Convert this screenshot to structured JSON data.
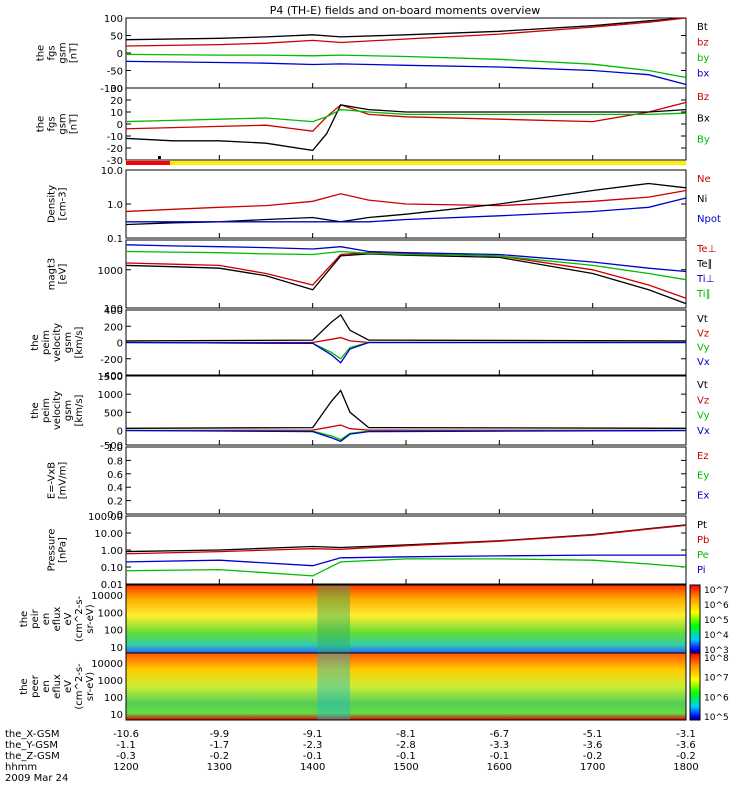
{
  "chart_data": {
    "type": "line",
    "title": "P4 (TH-E) fields and on-board moments overview",
    "date": "2009 Mar 24",
    "time_axis": {
      "label": "hhmm",
      "ticks": [
        "1200",
        "1300",
        "1400",
        "1500",
        "1600",
        "1700",
        "1800"
      ],
      "range": [
        1200,
        1800
      ]
    },
    "ephemeris": [
      {
        "label": "the_X-GSM",
        "values": [
          "-10.6",
          "-9.9",
          "-9.1",
          "-8.1",
          "-6.7",
          "-5.1",
          "-3.1"
        ]
      },
      {
        "label": "the_Y-GSM",
        "values": [
          "-1.1",
          "-1.7",
          "-2.3",
          "-2.8",
          "-3.3",
          "-3.6",
          "-3.6"
        ]
      },
      {
        "label": "the_Z-GSM",
        "values": [
          "-0.3",
          "-0.2",
          "-0.1",
          "-0.1",
          "-0.1",
          "-0.2",
          "-0.2"
        ]
      }
    ],
    "panels": [
      {
        "id": "fgs",
        "ylabel": [
          "the",
          "fgs",
          "gsm",
          "[nT]"
        ],
        "scale": "linear",
        "ylim": [
          -100,
          100
        ],
        "ticks": [
          "100",
          "50",
          "0",
          "-50",
          "-100"
        ],
        "series": [
          {
            "name": "Bt",
            "color": "#000000",
            "x": [
              1200,
              1300,
              1350,
              1400,
              1430,
              1500,
              1600,
              1700,
              1760,
              1800
            ],
            "y": [
              38,
              42,
              46,
              52,
              46,
              52,
              62,
              78,
              92,
              100
            ]
          },
          {
            "name": "bz",
            "color": "#cc0000",
            "x": [
              1200,
              1300,
              1350,
              1400,
              1430,
              1500,
              1600,
              1700,
              1760,
              1800
            ],
            "y": [
              20,
              24,
              28,
              36,
              30,
              40,
              54,
              74,
              88,
              100
            ]
          },
          {
            "name": "by",
            "color": "#00bb00",
            "x": [
              1200,
              1300,
              1350,
              1400,
              1430,
              1500,
              1600,
              1700,
              1760,
              1800
            ],
            "y": [
              -4,
              -6,
              -6,
              -8,
              -6,
              -10,
              -18,
              -32,
              -50,
              -70
            ]
          },
          {
            "name": "bx",
            "color": "#0000cc",
            "x": [
              1200,
              1300,
              1350,
              1400,
              1430,
              1500,
              1600,
              1700,
              1760,
              1800
            ],
            "y": [
              -24,
              -27,
              -29,
              -33,
              -31,
              -35,
              -40,
              -50,
              -62,
              -90
            ]
          }
        ]
      },
      {
        "id": "fgs-zoom",
        "ylabel": [
          "the",
          "fgs",
          "gsm",
          "[nT]"
        ],
        "scale": "linear",
        "ylim": [
          -30,
          30
        ],
        "ticks": [
          "30",
          "20",
          "10",
          "0",
          "-10",
          "-20",
          "-30"
        ],
        "series": [
          {
            "name": "Bz",
            "color": "#cc0000",
            "x": [
              1200,
              1250,
              1300,
              1350,
              1400,
              1415,
              1430,
              1460,
              1500,
              1600,
              1700,
              1760,
              1800
            ],
            "y": [
              -4,
              -3,
              -2,
              -1,
              -6,
              6,
              16,
              8,
              6,
              4,
              2,
              10,
              18
            ]
          },
          {
            "name": "Bx",
            "color": "#000000",
            "x": [
              1200,
              1250,
              1300,
              1350,
              1400,
              1415,
              1430,
              1460,
              1500,
              1600,
              1700,
              1760,
              1800
            ],
            "y": [
              -12,
              -14,
              -14,
              -16,
              -22,
              -8,
              16,
              12,
              10,
              10,
              10,
              10,
              12
            ]
          },
          {
            "name": "By",
            "color": "#00bb00",
            "x": [
              1200,
              1250,
              1300,
              1350,
              1400,
              1415,
              1430,
              1460,
              1500,
              1600,
              1700,
              1760,
              1800
            ],
            "y": [
              2,
              3,
              4,
              5,
              2,
              6,
              12,
              10,
              8,
              8,
              8,
              8,
              9
            ]
          }
        ]
      },
      {
        "id": "density",
        "ylabel": [
          "Density",
          "[cm-3]"
        ],
        "scale": "log",
        "ylim": [
          0.1,
          10
        ],
        "ticks": [
          "10.0",
          "1.0",
          "0.1"
        ],
        "series": [
          {
            "name": "Ne",
            "color": "#cc0000",
            "x": [
              1200,
              1250,
              1300,
              1350,
              1400,
              1430,
              1460,
              1500,
              1600,
              1700,
              1760,
              1800
            ],
            "y": [
              0.6,
              0.7,
              0.8,
              0.9,
              1.2,
              2.0,
              1.3,
              1.0,
              0.9,
              1.2,
              1.6,
              2.5
            ]
          },
          {
            "name": "Ni",
            "color": "#000000",
            "x": [
              1200,
              1250,
              1300,
              1350,
              1400,
              1430,
              1460,
              1500,
              1600,
              1700,
              1760,
              1800
            ],
            "y": [
              0.25,
              0.28,
              0.3,
              0.35,
              0.4,
              0.3,
              0.4,
              0.5,
              1.0,
              2.5,
              4.0,
              3.0
            ]
          },
          {
            "name": "Npot",
            "color": "#0000cc",
            "x": [
              1200,
              1250,
              1300,
              1350,
              1400,
              1430,
              1460,
              1500,
              1600,
              1700,
              1760,
              1800
            ],
            "y": [
              0.3,
              0.3,
              0.3,
              0.3,
              0.3,
              0.3,
              0.3,
              0.35,
              0.45,
              0.6,
              0.8,
              1.5
            ]
          }
        ]
      },
      {
        "id": "temperature",
        "ylabel": [
          "magt3",
          "[eV]"
        ],
        "scale": "log",
        "ylim": [
          100,
          6000
        ],
        "ticks": [
          "1000",
          "100"
        ],
        "series": [
          {
            "name": "Te⊥",
            "color": "#cc0000",
            "x": [
              1200,
              1250,
              1300,
              1350,
              1400,
              1430,
              1460,
              1500,
              1600,
              1700,
              1760,
              1800
            ],
            "y": [
              1500,
              1400,
              1300,
              800,
              400,
              2500,
              2800,
              2600,
              2300,
              1000,
              400,
              180
            ]
          },
          {
            "name": "Te∥",
            "color": "#000000",
            "x": [
              1200,
              1250,
              1300,
              1350,
              1400,
              1430,
              1460,
              1500,
              1600,
              1700,
              1760,
              1800
            ],
            "y": [
              1300,
              1200,
              1100,
              700,
              300,
              2300,
              2600,
              2400,
              2100,
              800,
              300,
              130
            ]
          },
          {
            "name": "Ti⊥",
            "color": "#0000cc",
            "x": [
              1200,
              1250,
              1300,
              1350,
              1400,
              1430,
              1460,
              1500,
              1600,
              1700,
              1760,
              1800
            ],
            "y": [
              4500,
              4200,
              4000,
              3800,
              3500,
              4000,
              3000,
              2800,
              2500,
              1600,
              1100,
              900
            ]
          },
          {
            "name": "Ti∥",
            "color": "#00bb00",
            "x": [
              1200,
              1250,
              1300,
              1350,
              1400,
              1430,
              1460,
              1500,
              1600,
              1700,
              1760,
              1800
            ],
            "y": [
              3000,
              2900,
              2800,
              2600,
              2500,
              3000,
              2700,
              2500,
              2300,
              1300,
              800,
              550
            ]
          }
        ]
      },
      {
        "id": "velocity-perp",
        "ylabel": [
          "the",
          "peim",
          "velocity",
          "gsm",
          "[km/s]"
        ],
        "scale": "linear",
        "ylim": [
          -400,
          400
        ],
        "ticks": [
          "400",
          "200",
          "0",
          "-200",
          "-400"
        ],
        "series": [
          {
            "name": "Vt",
            "color": "#000000",
            "x": [
              1200,
              1400,
              1420,
              1430,
              1440,
              1460,
              1800
            ],
            "y": [
              20,
              30,
              250,
              340,
              150,
              30,
              20
            ]
          },
          {
            "name": "Vz",
            "color": "#cc0000",
            "x": [
              1200,
              1400,
              1420,
              1430,
              1440,
              1460,
              1800
            ],
            "y": [
              0,
              0,
              40,
              60,
              20,
              0,
              0
            ]
          },
          {
            "name": "Vy",
            "color": "#00bb00",
            "x": [
              1200,
              1400,
              1420,
              1430,
              1440,
              1460,
              1800
            ],
            "y": [
              0,
              -10,
              -120,
              -200,
              -60,
              0,
              0
            ]
          },
          {
            "name": "Vx",
            "color": "#0000cc",
            "x": [
              1200,
              1400,
              1420,
              1430,
              1440,
              1460,
              1800
            ],
            "y": [
              0,
              -10,
              -150,
              -250,
              -80,
              0,
              0
            ]
          }
        ]
      },
      {
        "id": "velocity-perm",
        "ylabel": [
          "the",
          "peim",
          "velocity",
          "gsm",
          "[km/s]"
        ],
        "scale": "linear",
        "ylim": [
          -400,
          1500
        ],
        "ticks": [
          "1500",
          "1000",
          "500",
          "0",
          "-500"
        ],
        "series": [
          {
            "name": "Vt",
            "color": "#000000",
            "x": [
              1200,
              1400,
              1420,
              1430,
              1440,
              1460,
              1800
            ],
            "y": [
              60,
              80,
              800,
              1100,
              500,
              80,
              60
            ]
          },
          {
            "name": "Vz",
            "color": "#cc0000",
            "x": [
              1200,
              1400,
              1420,
              1430,
              1440,
              1460,
              1800
            ],
            "y": [
              0,
              10,
              100,
              150,
              50,
              10,
              0
            ]
          },
          {
            "name": "Vy",
            "color": "#00bb00",
            "x": [
              1200,
              1400,
              1420,
              1430,
              1440,
              1460,
              1800
            ],
            "y": [
              0,
              -20,
              -150,
              -250,
              -80,
              -20,
              0
            ]
          },
          {
            "name": "Vx",
            "color": "#0000cc",
            "x": [
              1200,
              1400,
              1420,
              1430,
              1440,
              1460,
              1800
            ],
            "y": [
              0,
              -30,
              -200,
              -300,
              -100,
              -30,
              0
            ]
          }
        ]
      },
      {
        "id": "efield",
        "ylabel": [
          "E=-VxB",
          "[mV/m]"
        ],
        "scale": "linear",
        "ylim": [
          0,
          1
        ],
        "ticks": [
          "1.0",
          "0.8",
          "0.6",
          "0.4",
          "0.2",
          "0.0"
        ],
        "series": [
          {
            "name": "Ez",
            "color": "#cc0000",
            "x": [],
            "y": []
          },
          {
            "name": "Ey",
            "color": "#00bb00",
            "x": [],
            "y": []
          },
          {
            "name": "Ex",
            "color": "#0000cc",
            "x": [],
            "y": []
          }
        ]
      },
      {
        "id": "pressure",
        "ylabel": [
          "Pressure",
          "[nPa]"
        ],
        "scale": "log",
        "ylim": [
          0.01,
          100
        ],
        "ticks": [
          "100.00",
          "10.00",
          "1.00",
          "0.10",
          "0.01"
        ],
        "series": [
          {
            "name": "Pt",
            "color": "#000000",
            "x": [
              1200,
              1300,
              1400,
              1430,
              1500,
              1600,
              1700,
              1760,
              1800
            ],
            "y": [
              0.8,
              1.0,
              1.6,
              1.4,
              2.0,
              3.5,
              8,
              18,
              30
            ]
          },
          {
            "name": "Pb",
            "color": "#cc0000",
            "x": [
              1200,
              1300,
              1400,
              1430,
              1500,
              1600,
              1700,
              1760,
              1800
            ],
            "y": [
              0.6,
              0.8,
              1.2,
              1.1,
              1.8,
              3.3,
              7.5,
              17,
              28
            ]
          },
          {
            "name": "Pe",
            "color": "#00bb00",
            "x": [
              1200,
              1300,
              1400,
              1430,
              1500,
              1600,
              1700,
              1760,
              1800
            ],
            "y": [
              0.06,
              0.07,
              0.03,
              0.2,
              0.3,
              0.3,
              0.25,
              0.15,
              0.1
            ]
          },
          {
            "name": "Pi",
            "color": "#0000cc",
            "x": [
              1200,
              1300,
              1400,
              1430,
              1500,
              1600,
              1700,
              1760,
              1800
            ],
            "y": [
              0.2,
              0.25,
              0.12,
              0.35,
              0.4,
              0.45,
              0.5,
              0.5,
              0.5
            ]
          }
        ]
      }
    ],
    "spectrograms": [
      {
        "id": "ion-eflux",
        "ylabel": [
          "the",
          "peir",
          "en",
          "eflux",
          "eV",
          "(cm^2-s-",
          "sr-eV)"
        ],
        "yticks": [
          "10000",
          "1000",
          "100",
          "10"
        ],
        "colorbar_ticks": [
          "10^7",
          "10^6",
          "10^5",
          "10^4",
          "10^3"
        ]
      },
      {
        "id": "electron-eflux",
        "ylabel": [
          "the",
          "peer",
          "en",
          "eflux",
          "eV",
          "(cm^2-s-",
          "sr-eV)"
        ],
        "yticks": [
          "10000",
          "1000",
          "100",
          "10"
        ],
        "colorbar_ticks": [
          "10^8",
          "10^7",
          "10^6",
          "10^5"
        ]
      }
    ]
  }
}
